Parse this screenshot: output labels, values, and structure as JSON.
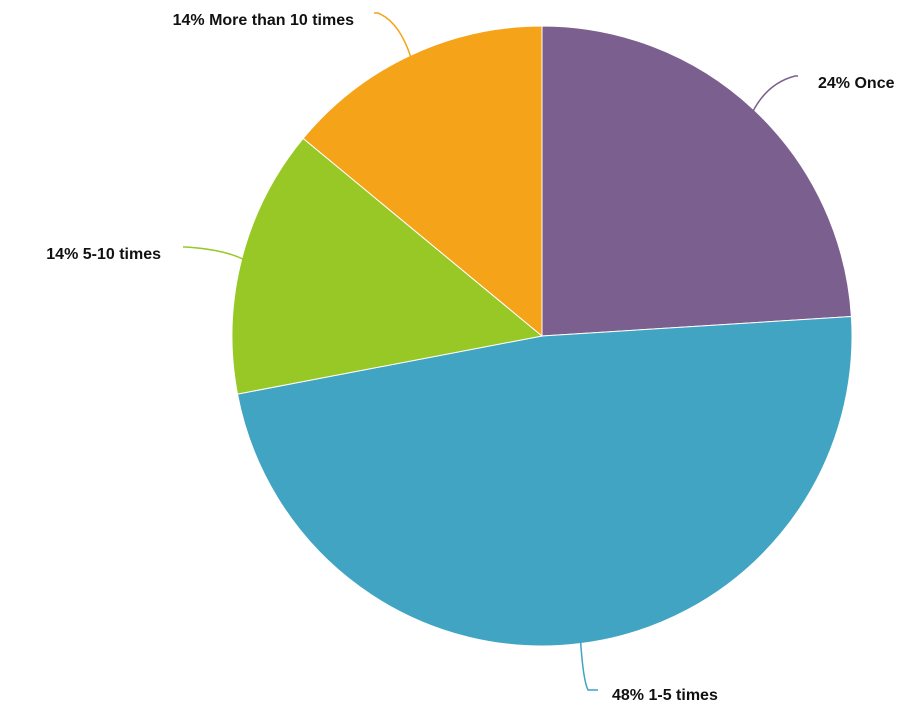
{
  "chart_data": {
    "type": "pie",
    "start_angle_deg": 0,
    "direction": "clockwise",
    "slices": [
      {
        "label": "Once",
        "value": 24,
        "display": "24% Once",
        "color": "#7B5F8E",
        "label_side": "right"
      },
      {
        "label": "1-5 times",
        "value": 48,
        "display": "48% 1-5 times",
        "color": "#40A4C2",
        "label_side": "right"
      },
      {
        "label": "5-10 times",
        "value": 14,
        "display": "14% 5-10 times",
        "color": "#97C826",
        "label_side": "left"
      },
      {
        "label": "More than 10 times",
        "value": 14,
        "display": "14% More than 10 times",
        "color": "#F5A41A",
        "label_side": "left"
      }
    ],
    "unit": "%",
    "legend": "none"
  }
}
